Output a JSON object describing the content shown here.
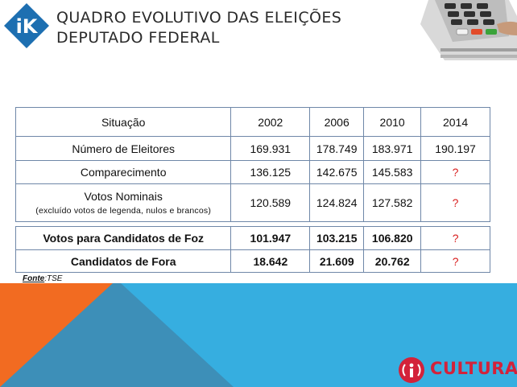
{
  "title": {
    "line1": "QUADRO EVOLUTIVO DAS ELEIÇÕES",
    "line2": "DEPUTADO FEDERAL"
  },
  "logo": {
    "text": "iK",
    "icon": "ik-logo-icon"
  },
  "table": {
    "header": [
      "Situação",
      "2002",
      "2006",
      "2010",
      "2014"
    ],
    "rows": [
      {
        "label": "Número de Eleitores",
        "values": [
          "169.931",
          "178.749",
          "183.971",
          "190.197"
        ]
      },
      {
        "label": "Comparecimento",
        "values": [
          "136.125",
          "142.675",
          "145.583",
          "?"
        ]
      },
      {
        "label": "Votos Nominais",
        "sublabel": "(excluído votos de legenda, nulos e brancos)",
        "values": [
          "120.589",
          "124.824",
          "127.582",
          "?"
        ]
      }
    ],
    "rows2": [
      {
        "label": "Votos para Candidatos de Foz",
        "values": [
          "101.947",
          "103.215",
          "106.820",
          "?"
        ]
      },
      {
        "label": "Candidatos de Fora",
        "values": [
          "18.642",
          "21.609",
          "20.762",
          "?"
        ]
      }
    ]
  },
  "source": {
    "label": "Fonte",
    "value": ":TSE"
  },
  "brand": {
    "name": "CULTURA",
    "icon": "radio-i-icon",
    "color": "#d3223a"
  },
  "colors": {
    "blue": "#36aee0",
    "orange": "#f26b21",
    "logo_blue": "#1d6fb1",
    "question": "#d81e1e"
  }
}
